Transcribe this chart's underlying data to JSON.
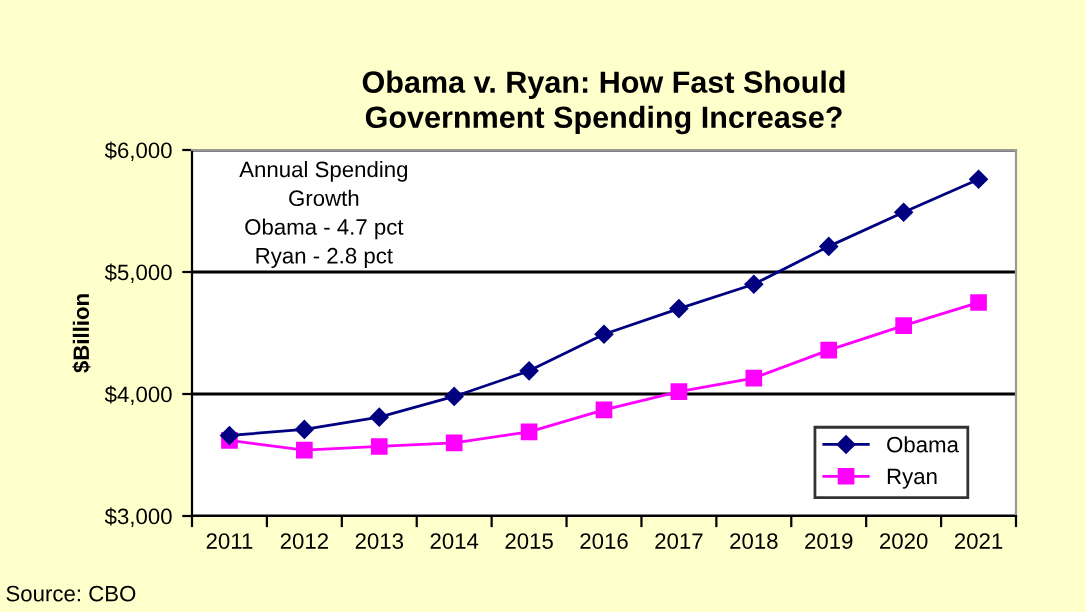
{
  "chart_data": {
    "type": "line",
    "title": "Obama v. Ryan: How Fast Should\nGovernment Spending Increase?",
    "ylabel": "$Billion",
    "categories": [
      "2011",
      "2012",
      "2013",
      "2014",
      "2015",
      "2016",
      "2017",
      "2018",
      "2019",
      "2020",
      "2021"
    ],
    "series": [
      {
        "name": "Obama",
        "color": "#000080",
        "marker": "diamond",
        "values": [
          3660,
          3710,
          3810,
          3980,
          4190,
          4490,
          4700,
          4900,
          5210,
          5490,
          5760
        ]
      },
      {
        "name": "Ryan",
        "color": "#ff00ff",
        "marker": "square",
        "values": [
          3620,
          3540,
          3570,
          3600,
          3690,
          3870,
          4020,
          4130,
          4360,
          4560,
          4750
        ]
      }
    ],
    "ylim": [
      3000,
      6000
    ],
    "yticks": [
      {
        "value": 3000,
        "label": "$3,000"
      },
      {
        "value": 4000,
        "label": "$4,000"
      },
      {
        "value": 5000,
        "label": "$5,000"
      },
      {
        "value": 6000,
        "label": "$6,000"
      }
    ],
    "grid": "y",
    "legend": "bottom right",
    "annotations": [
      "Annual Spending\nGrowth\nObama - 4.7 pct\nRyan - 2.8 pct",
      "Source: CBO"
    ]
  }
}
